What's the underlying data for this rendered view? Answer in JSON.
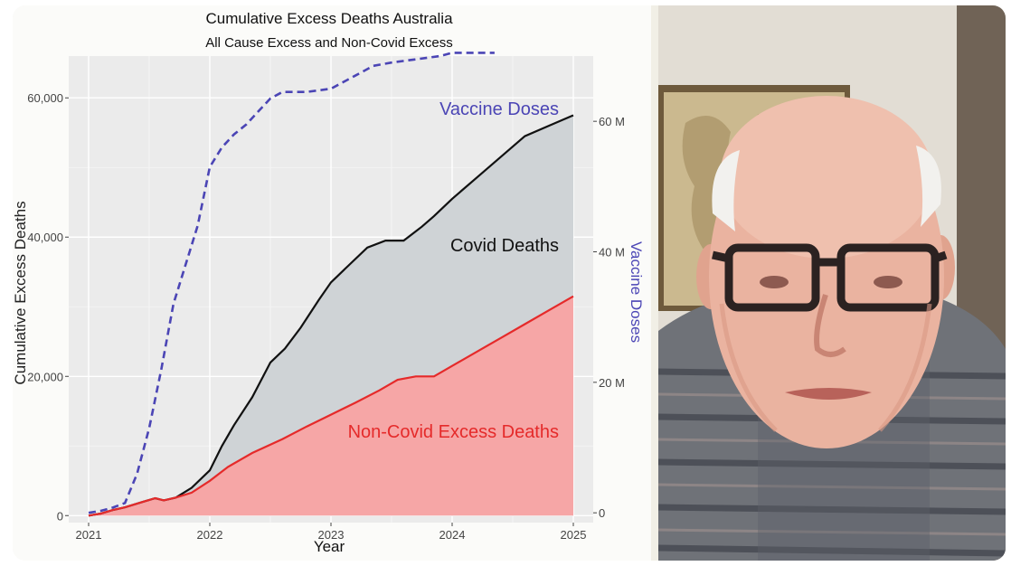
{
  "chart_data": {
    "type": "area",
    "title": "Cumulative Excess Deaths Australia",
    "subtitle": "All Cause Excess and Non-Covid Excess",
    "xlabel": "Year",
    "ylabel": "Cumulative Excess Deaths",
    "y2label": "Vaccine Doses",
    "x_ticks": [
      "2021",
      "2022",
      "2023",
      "2024",
      "2025"
    ],
    "y_ticks": [
      "0",
      "20,000",
      "40,000",
      "60,000"
    ],
    "y2_ticks": [
      "0",
      "20 M",
      "40 M",
      "60 M"
    ],
    "xlim": [
      2021,
      2025
    ],
    "ylim": [
      -1000,
      66000
    ],
    "y2lim": [
      -1.5,
      70
    ],
    "grid": true,
    "background": "#ebebeb",
    "series": [
      {
        "name": "Covid Deaths",
        "axis": "left",
        "fill": "#cfd3d6",
        "stroke": "#111111",
        "x": [
          2021.0,
          2021.1,
          2021.2,
          2021.3,
          2021.45,
          2021.55,
          2021.62,
          2021.72,
          2021.85,
          2022.0,
          2022.1,
          2022.2,
          2022.35,
          2022.5,
          2022.62,
          2022.75,
          2022.9,
          2023.0,
          2023.15,
          2023.3,
          2023.45,
          2023.6,
          2023.75,
          2023.85,
          2024.0,
          2024.2,
          2024.4,
          2024.6,
          2024.8,
          2025.0
        ],
        "values": [
          0,
          300,
          800,
          1200,
          2000,
          2500,
          2200,
          2600,
          4000,
          6500,
          10000,
          13000,
          17000,
          22000,
          24000,
          27000,
          31000,
          33500,
          36000,
          38500,
          39500,
          39500,
          41500,
          43000,
          45500,
          48500,
          51500,
          54500,
          56000,
          57500
        ]
      },
      {
        "name": "Non-Covid Excess Deaths",
        "axis": "left",
        "fill": "#f6a6a6",
        "stroke": "#e52a2a",
        "x": [
          2021.0,
          2021.1,
          2021.2,
          2021.3,
          2021.45,
          2021.55,
          2021.62,
          2021.72,
          2021.85,
          2022.0,
          2022.15,
          2022.35,
          2022.6,
          2022.8,
          2023.0,
          2023.2,
          2023.4,
          2023.55,
          2023.7,
          2023.85,
          2024.0,
          2024.2,
          2024.4,
          2024.6,
          2024.8,
          2025.0
        ],
        "values": [
          0,
          300,
          800,
          1200,
          2000,
          2500,
          2200,
          2600,
          3300,
          5000,
          7000,
          9000,
          11000,
          12800,
          14500,
          16200,
          18000,
          19500,
          20000,
          20000,
          21500,
          23500,
          25500,
          27500,
          29500,
          31500
        ]
      },
      {
        "name": "Vaccine Doses",
        "axis": "right",
        "stroke": "#4b45b5",
        "dash": true,
        "x": [
          2021.0,
          2021.1,
          2021.2,
          2021.3,
          2021.4,
          2021.5,
          2021.6,
          2021.7,
          2021.8,
          2021.9,
          2022.0,
          2022.1,
          2022.2,
          2022.3,
          2022.4,
          2022.5,
          2022.6,
          2022.8,
          2023.0,
          2023.1,
          2023.2,
          2023.35,
          2023.5,
          2023.7,
          2023.9,
          2024.0,
          2024.2,
          2024.35
        ],
        "values": [
          0,
          0.3,
          0.8,
          1.5,
          6.0,
          13.0,
          22.0,
          32.0,
          38.0,
          44.0,
          53.0,
          56.0,
          58.0,
          59.5,
          61.5,
          63.5,
          64.5,
          64.5,
          65.0,
          66.0,
          67.0,
          68.5,
          69.0,
          69.5,
          70.0,
          70.5,
          70.5,
          70.5
        ]
      }
    ],
    "labels": {
      "vaccine": "Vaccine Doses",
      "covid": "Covid Deaths",
      "noncovid": "Non-Covid Excess Deaths"
    }
  },
  "colors": {
    "panel_bg": "#ebebeb",
    "vaccine": "#4b45b5",
    "covid_fill": "#cfd3d6",
    "noncovid_fill": "#f6a6a6",
    "noncovid_line": "#e52a2a",
    "text": "#222222"
  },
  "video": {
    "content": "person-on-video-call"
  }
}
